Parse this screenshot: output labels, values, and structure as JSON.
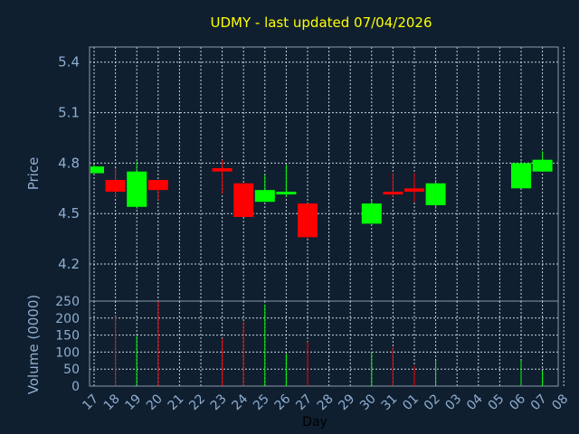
{
  "chart_data": {
    "type": "candlestick",
    "title": "UDMY - last updated 07/04/2026",
    "xlabel": "Day",
    "price_label": "Price",
    "volume_label": "Volume (0000)",
    "x_ticks": [
      "17",
      "18",
      "19",
      "20",
      "21",
      "22",
      "23",
      "24",
      "25",
      "26",
      "27",
      "28",
      "29",
      "30",
      "31",
      "01",
      "02",
      "03",
      "04",
      "05",
      "06",
      "07",
      "08"
    ],
    "price_ticks": [
      "5.4",
      "5.1",
      "4.8",
      "4.5",
      "4.2"
    ],
    "price_ylim": [
      3.98,
      5.49
    ],
    "volume_ticks": [
      "250",
      "200",
      "150",
      "100",
      "50",
      "0"
    ],
    "volume_ylim": [
      0,
      250
    ],
    "grid": true,
    "colors": {
      "background": "#0f1f30",
      "title": "#ffff00",
      "axis_text": "#8eaed0",
      "xlabel": "#000000",
      "grid": "#c9d3dc",
      "frame": "#8899aa",
      "up": "#00ff00",
      "down": "#ff0000"
    },
    "candles": [
      {
        "day": "17",
        "open": 4.74,
        "high": 4.79,
        "low": 4.74,
        "close": 4.78
      },
      {
        "day": "18",
        "open": 4.7,
        "high": 4.77,
        "low": 4.6,
        "close": 4.63
      },
      {
        "day": "19",
        "open": 4.54,
        "high": 4.81,
        "low": 4.53,
        "close": 4.75
      },
      {
        "day": "20",
        "open": 4.7,
        "high": 4.7,
        "low": 4.58,
        "close": 4.64
      },
      {
        "day": "23",
        "open": 4.77,
        "high": 4.82,
        "low": 4.62,
        "close": 4.75
      },
      {
        "day": "24",
        "open": 4.68,
        "high": 4.68,
        "low": 4.48,
        "close": 4.48
      },
      {
        "day": "25",
        "open": 4.57,
        "high": 4.73,
        "low": 4.57,
        "close": 4.64
      },
      {
        "day": "26",
        "open": 4.62,
        "high": 4.79,
        "low": 4.6,
        "close": 4.63
      },
      {
        "day": "27",
        "open": 4.56,
        "high": 4.56,
        "low": 4.35,
        "close": 4.36
      },
      {
        "day": "30",
        "open": 4.44,
        "high": 4.58,
        "low": 4.44,
        "close": 4.56
      },
      {
        "day": "31",
        "open": 4.63,
        "high": 4.74,
        "low": 4.6,
        "close": 4.62
      },
      {
        "day": "01",
        "open": 4.65,
        "high": 4.74,
        "low": 4.57,
        "close": 4.63
      },
      {
        "day": "02",
        "open": 4.55,
        "high": 4.7,
        "low": 4.53,
        "close": 4.68
      },
      {
        "day": "06",
        "open": 4.65,
        "high": 4.81,
        "low": 4.65,
        "close": 4.8
      },
      {
        "day": "07",
        "open": 4.75,
        "high": 4.87,
        "low": 4.75,
        "close": 4.82
      }
    ],
    "volumes": [
      {
        "day": "18",
        "value": 205,
        "direction": "down"
      },
      {
        "day": "19",
        "value": 148,
        "direction": "up"
      },
      {
        "day": "20",
        "value": 250,
        "direction": "down"
      },
      {
        "day": "23",
        "value": 140,
        "direction": "down"
      },
      {
        "day": "24",
        "value": 190,
        "direction": "down"
      },
      {
        "day": "25",
        "value": 240,
        "direction": "up"
      },
      {
        "day": "26",
        "value": 95,
        "direction": "up"
      },
      {
        "day": "27",
        "value": 130,
        "direction": "down"
      },
      {
        "day": "30",
        "value": 100,
        "direction": "up"
      },
      {
        "day": "31",
        "value": 115,
        "direction": "down"
      },
      {
        "day": "01",
        "value": 60,
        "direction": "down"
      },
      {
        "day": "02",
        "value": 75,
        "direction": "up"
      },
      {
        "day": "06",
        "value": 75,
        "direction": "up"
      },
      {
        "day": "07",
        "value": 45,
        "direction": "up"
      }
    ]
  }
}
